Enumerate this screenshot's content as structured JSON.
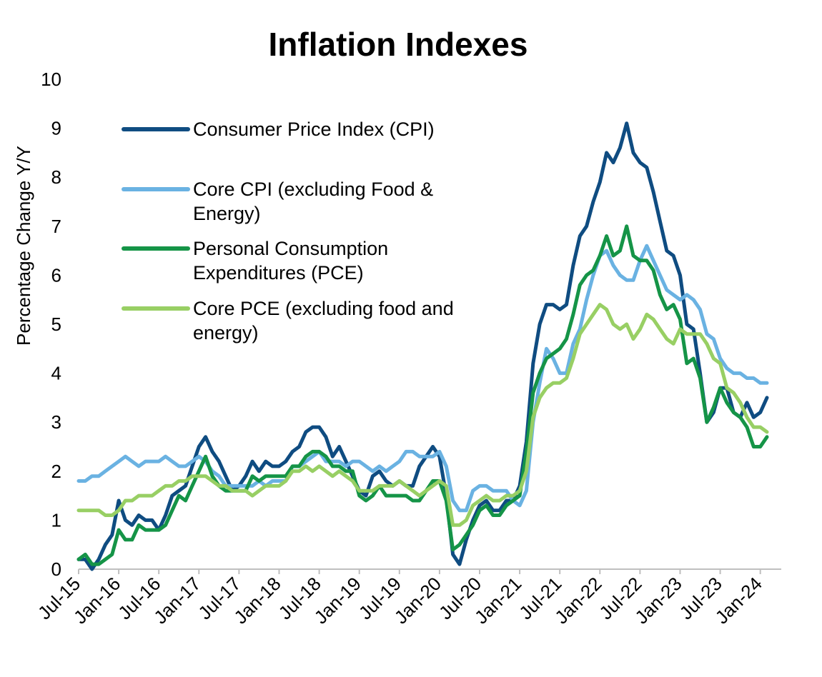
{
  "chart_data": {
    "type": "line",
    "title": "Inflation Indexes",
    "xlabel": "",
    "ylabel": "Percentage Change Y/Y",
    "ylim": [
      0,
      10
    ],
    "yticks": [
      0,
      1,
      2,
      3,
      4,
      5,
      6,
      7,
      8,
      9,
      10
    ],
    "xlim": [
      "Jul-15",
      "May-24"
    ],
    "xtick_labels": [
      "Jul-15",
      "Jan-16",
      "Jul-16",
      "Jan-17",
      "Jul-17",
      "Jan-18",
      "Jul-18",
      "Jan-19",
      "Jul-19",
      "Jan-20",
      "Jul-20",
      "Jan-21",
      "Jul-21",
      "Jan-22",
      "Jul-22",
      "Jan-23",
      "Jul-23",
      "Jan-24"
    ],
    "x_start": "Jul-15",
    "x_step": "monthly",
    "grid": false,
    "legend_position": "top-left",
    "series": [
      {
        "name": "Consumer Price Index (CPI)",
        "legend_lines": [
          "Consumer Price Index (CPI)"
        ],
        "color": "#0F4C81",
        "values": [
          0.2,
          0.2,
          0.0,
          0.2,
          0.5,
          0.7,
          1.4,
          1.0,
          0.9,
          1.1,
          1.0,
          1.0,
          0.8,
          1.1,
          1.5,
          1.6,
          1.7,
          2.1,
          2.5,
          2.7,
          2.4,
          2.2,
          1.9,
          1.6,
          1.7,
          1.9,
          2.2,
          2.0,
          2.2,
          2.1,
          2.1,
          2.2,
          2.4,
          2.5,
          2.8,
          2.9,
          2.9,
          2.7,
          2.3,
          2.5,
          2.2,
          1.9,
          1.6,
          1.5,
          1.9,
          2.0,
          1.8,
          1.7,
          1.8,
          1.7,
          1.7,
          2.1,
          2.3,
          2.5,
          2.3,
          1.5,
          0.3,
          0.1,
          0.6,
          1.0,
          1.3,
          1.4,
          1.2,
          1.2,
          1.4,
          1.4,
          1.7,
          2.6,
          4.2,
          5.0,
          5.4,
          5.4,
          5.3,
          5.4,
          6.2,
          6.8,
          7.0,
          7.5,
          7.9,
          8.5,
          8.3,
          8.6,
          9.1,
          8.5,
          8.3,
          8.2,
          7.7,
          7.1,
          6.5,
          6.4,
          6.0,
          5.0,
          4.9,
          4.0,
          3.0,
          3.2,
          3.7,
          3.7,
          3.2,
          3.1,
          3.4,
          3.1,
          3.2,
          3.5
        ]
      },
      {
        "name": "Core CPI (excluding Food & Energy)",
        "legend_lines": [
          "Core CPI (excluding Food &",
          "Energy)"
        ],
        "color": "#6AB2E2",
        "values": [
          1.8,
          1.8,
          1.9,
          1.9,
          2.0,
          2.1,
          2.2,
          2.3,
          2.2,
          2.1,
          2.2,
          2.2,
          2.2,
          2.3,
          2.2,
          2.1,
          2.1,
          2.2,
          2.3,
          2.2,
          2.0,
          1.9,
          1.7,
          1.7,
          1.7,
          1.7,
          1.7,
          1.8,
          1.7,
          1.8,
          1.8,
          1.8,
          2.1,
          2.1,
          2.2,
          2.3,
          2.4,
          2.2,
          2.2,
          2.2,
          2.1,
          2.2,
          2.2,
          2.1,
          2.0,
          2.1,
          2.0,
          2.1,
          2.2,
          2.4,
          2.4,
          2.3,
          2.3,
          2.3,
          2.4,
          2.1,
          1.4,
          1.2,
          1.2,
          1.6,
          1.7,
          1.7,
          1.6,
          1.6,
          1.6,
          1.4,
          1.3,
          1.6,
          3.0,
          3.8,
          4.5,
          4.3,
          4.0,
          4.0,
          4.6,
          4.9,
          5.5,
          6.0,
          6.4,
          6.5,
          6.2,
          6.0,
          5.9,
          5.9,
          6.3,
          6.6,
          6.3,
          6.0,
          5.7,
          5.6,
          5.5,
          5.6,
          5.5,
          5.3,
          4.8,
          4.7,
          4.3,
          4.1,
          4.0,
          4.0,
          3.9,
          3.9,
          3.8,
          3.8
        ]
      },
      {
        "name": "Personal Consumption Expenditures (PCE)",
        "legend_lines": [
          "Personal Consumption",
          "Expenditures (PCE)"
        ],
        "color": "#159447",
        "values": [
          0.2,
          0.3,
          0.1,
          0.1,
          0.2,
          0.3,
          0.8,
          0.6,
          0.6,
          0.9,
          0.8,
          0.8,
          0.8,
          0.9,
          1.2,
          1.5,
          1.4,
          1.7,
          2.0,
          2.3,
          1.9,
          1.7,
          1.6,
          1.6,
          1.6,
          1.6,
          1.9,
          1.8,
          1.9,
          1.9,
          1.9,
          1.9,
          2.1,
          2.1,
          2.3,
          2.4,
          2.4,
          2.3,
          2.1,
          2.1,
          2.0,
          2.0,
          1.5,
          1.4,
          1.5,
          1.7,
          1.5,
          1.5,
          1.5,
          1.5,
          1.4,
          1.4,
          1.6,
          1.8,
          1.8,
          1.4,
          0.4,
          0.5,
          0.7,
          0.9,
          1.2,
          1.3,
          1.1,
          1.1,
          1.3,
          1.4,
          1.5,
          2.4,
          3.6,
          4.0,
          4.3,
          4.4,
          4.5,
          4.7,
          5.2,
          5.8,
          6.0,
          6.1,
          6.4,
          6.8,
          6.4,
          6.5,
          7.0,
          6.4,
          6.3,
          6.3,
          6.1,
          5.6,
          5.3,
          5.4,
          5.1,
          4.2,
          4.3,
          3.9,
          3.0,
          3.3,
          3.7,
          3.4,
          3.2,
          3.1,
          2.9,
          2.5,
          2.5,
          2.7
        ]
      },
      {
        "name": "Core PCE (excluding food and energy)",
        "legend_lines": [
          "Core PCE (excluding food and",
          "energy)"
        ],
        "color": "#98CF64",
        "values": [
          1.2,
          1.2,
          1.2,
          1.2,
          1.1,
          1.1,
          1.2,
          1.4,
          1.4,
          1.5,
          1.5,
          1.5,
          1.6,
          1.7,
          1.7,
          1.8,
          1.8,
          1.9,
          1.9,
          1.9,
          1.8,
          1.7,
          1.7,
          1.6,
          1.6,
          1.6,
          1.5,
          1.6,
          1.7,
          1.7,
          1.7,
          1.8,
          2.0,
          2.0,
          2.1,
          2.0,
          2.1,
          2.0,
          1.9,
          2.0,
          1.9,
          1.8,
          1.6,
          1.6,
          1.6,
          1.7,
          1.7,
          1.7,
          1.8,
          1.7,
          1.6,
          1.5,
          1.6,
          1.7,
          1.8,
          1.7,
          0.9,
          0.9,
          1.0,
          1.3,
          1.4,
          1.5,
          1.4,
          1.4,
          1.5,
          1.5,
          1.6,
          2.0,
          3.1,
          3.5,
          3.7,
          3.8,
          3.8,
          3.9,
          4.3,
          4.8,
          5.0,
          5.2,
          5.4,
          5.3,
          5.0,
          4.9,
          5.0,
          4.7,
          4.9,
          5.2,
          5.1,
          4.9,
          4.7,
          4.6,
          4.9,
          4.8,
          4.8,
          4.8,
          4.6,
          4.3,
          4.2,
          3.7,
          3.6,
          3.4,
          3.1,
          2.9,
          2.9,
          2.8
        ]
      }
    ]
  }
}
